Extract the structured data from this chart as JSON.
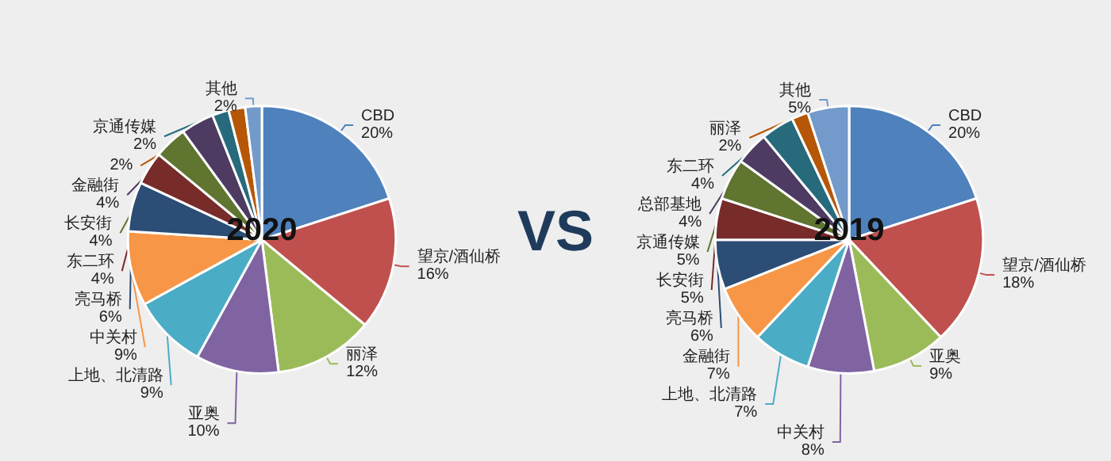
{
  "chart_data": [
    {
      "type": "pie",
      "title": "2020",
      "value_labels": [
        "20%",
        "16%",
        "12%",
        "10%",
        "9%",
        "9%",
        "6%",
        "4%",
        "4%",
        "4%",
        "2%",
        "2%",
        "2%"
      ],
      "categories": [
        "CBD",
        "望京/酒仙桥",
        "丽泽",
        "亚奥",
        "上地、北清路",
        "中关村",
        "亮马桥",
        "东二环",
        "长安街",
        "金融街",
        "京通传媒",
        null,
        "其他"
      ],
      "values": [
        20,
        16,
        12,
        10,
        9,
        9,
        6,
        4,
        4,
        4,
        2,
        2,
        2
      ],
      "colors": [
        "#4f81bd",
        "#c0504d",
        "#9bbb59",
        "#8064a2",
        "#4bacc6",
        "#f79646",
        "#2c4d75",
        "#772c2a",
        "#5f7530",
        "#4d3b62",
        "#276a7c",
        "#b65708",
        "#729aca"
      ]
    },
    {
      "type": "other",
      "title": "VS"
    },
    {
      "type": "pie",
      "title": "2019",
      "value_labels": [
        "20%",
        "18%",
        "9%",
        "8%",
        "7%",
        "7%",
        "6%",
        "5%",
        "5%",
        "4%",
        "4%",
        "2%",
        "5%"
      ],
      "categories": [
        "CBD",
        "望京/酒仙桥",
        "亚奥",
        "中关村",
        "上地、北清路",
        "金融街",
        "亮马桥",
        "长安街",
        "京通传媒",
        "总部基地",
        "东二环",
        "丽泽",
        "其他"
      ],
      "values": [
        20,
        18,
        9,
        8,
        7,
        7,
        6,
        5,
        5,
        4,
        4,
        2,
        5
      ],
      "colors": [
        "#4f81bd",
        "#c0504d",
        "#9bbb59",
        "#8064a2",
        "#4bacc6",
        "#f79646",
        "#2c4d75",
        "#772c2a",
        "#5f7530",
        "#4d3b62",
        "#276a7c",
        "#b65708",
        "#729aca"
      ]
    }
  ]
}
